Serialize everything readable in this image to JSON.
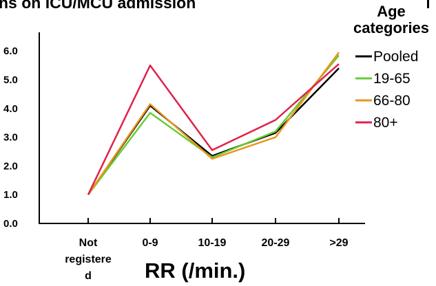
{
  "chart_data": {
    "type": "line",
    "title": "ns on ICU/MCU admission",
    "xlabel": "RR (/min.)",
    "ylabel": "",
    "categories": [
      "Not registered",
      "0-9",
      "10-19",
      "20-29",
      ">29"
    ],
    "category_label_lines": [
      [
        "Not",
        "registere",
        "d"
      ],
      [
        "0-9"
      ],
      [
        "10-19"
      ],
      [
        "20-29"
      ],
      [
        ">29"
      ]
    ],
    "yticks": [
      "0.0",
      "1.0",
      "2.0",
      "3.0",
      "4.0",
      "5.0",
      "6.0"
    ],
    "ylim": [
      0,
      6.2
    ],
    "grid": false,
    "legend": {
      "title_lines": [
        "Age",
        "categories"
      ],
      "position": "top-right"
    },
    "series": [
      {
        "name": "Pooled",
        "color": "#000000",
        "values": [
          1.0,
          4.1,
          2.35,
          3.15,
          5.4
        ]
      },
      {
        "name": "19-65",
        "color": "#66cc33",
        "values": [
          1.0,
          3.85,
          2.3,
          3.2,
          5.85
        ]
      },
      {
        "name": "66-80",
        "color": "#e8951e",
        "values": [
          1.0,
          4.15,
          2.25,
          3.0,
          5.95
        ]
      },
      {
        "name": "80+",
        "color": "#e0204a",
        "values": [
          1.0,
          5.5,
          2.55,
          3.6,
          5.55
        ]
      }
    ]
  }
}
